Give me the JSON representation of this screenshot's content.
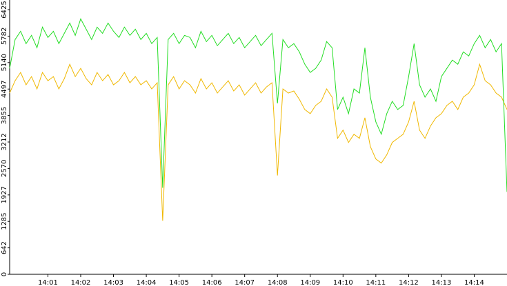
{
  "chart_data": {
    "type": "line",
    "categories": [
      null,
      null,
      null,
      null,
      null,
      null,
      null,
      "14:01",
      null,
      null,
      null,
      null,
      null,
      "14:02",
      null,
      null,
      null,
      null,
      null,
      "14:03",
      null,
      null,
      null,
      null,
      null,
      "14:04",
      null,
      null,
      null,
      null,
      null,
      "14:05",
      null,
      null,
      null,
      null,
      null,
      "14:06",
      null,
      null,
      null,
      null,
      null,
      "14:07",
      null,
      null,
      null,
      null,
      null,
      "14:08",
      null,
      null,
      null,
      null,
      null,
      "14:09",
      null,
      null,
      null,
      null,
      null,
      "14:10",
      null,
      null,
      null,
      null,
      null,
      "14:11",
      null,
      null,
      null,
      null,
      null,
      "14:12",
      null,
      null,
      null,
      null,
      null,
      "14:13",
      null,
      null,
      null,
      null,
      null,
      "14:14",
      null,
      null,
      null,
      null,
      null,
      null
    ],
    "series": [
      {
        "name": "green",
        "color": "#22dd22",
        "values": [
          5000,
          5700,
          5900,
          5600,
          5800,
          5500,
          6000,
          5750,
          5900,
          5600,
          5850,
          6100,
          5800,
          6200,
          5950,
          5700,
          6000,
          5850,
          6100,
          5900,
          5750,
          6000,
          5800,
          5950,
          5700,
          5850,
          5600,
          5750,
          2100,
          5700,
          5850,
          5600,
          5800,
          5750,
          5500,
          5900,
          5650,
          5800,
          5550,
          5700,
          5850,
          5600,
          5750,
          5500,
          5650,
          5800,
          5550,
          5700,
          5850,
          4150,
          5700,
          5500,
          5600,
          5400,
          5100,
          4900,
          5000,
          5200,
          5650,
          5500,
          4000,
          4300,
          3900,
          4500,
          4400,
          5500,
          4300,
          3700,
          3400,
          3900,
          4200,
          4000,
          4100,
          4800,
          5600,
          4600,
          4300,
          4500,
          4200,
          4800,
          5000,
          5200,
          5100,
          5400,
          5300,
          5600,
          5800,
          5500,
          5700,
          5400,
          5600,
          2000
        ]
      },
      {
        "name": "yellow",
        "color": "#f0b800",
        "values": [
          4400,
          4700,
          4900,
          4600,
          4800,
          4500,
          4900,
          4700,
          4800,
          4500,
          4750,
          5100,
          4800,
          5000,
          4750,
          4600,
          4900,
          4700,
          4850,
          4600,
          4700,
          4900,
          4650,
          4800,
          4600,
          4700,
          4500,
          4650,
          1300,
          4600,
          4800,
          4500,
          4700,
          4600,
          4400,
          4750,
          4500,
          4650,
          4400,
          4550,
          4700,
          4450,
          4600,
          4350,
          4500,
          4650,
          4400,
          4550,
          4650,
          2400,
          4500,
          4400,
          4450,
          4250,
          4000,
          3900,
          4100,
          4200,
          4500,
          4300,
          3300,
          3500,
          3200,
          3400,
          3300,
          3800,
          3100,
          2800,
          2700,
          2900,
          3200,
          3300,
          3400,
          3700,
          4200,
          3500,
          3300,
          3600,
          3800,
          3900,
          4100,
          4200,
          4000,
          4300,
          4400,
          4600,
          5100,
          4700,
          4600,
          4400,
          4300,
          4000
        ]
      }
    ],
    "ylim": [
      0,
      6425
    ],
    "yticks": [
      0,
      642,
      1285,
      1927,
      2570,
      3212,
      3855,
      4497,
      5140,
      5782,
      6425
    ]
  }
}
